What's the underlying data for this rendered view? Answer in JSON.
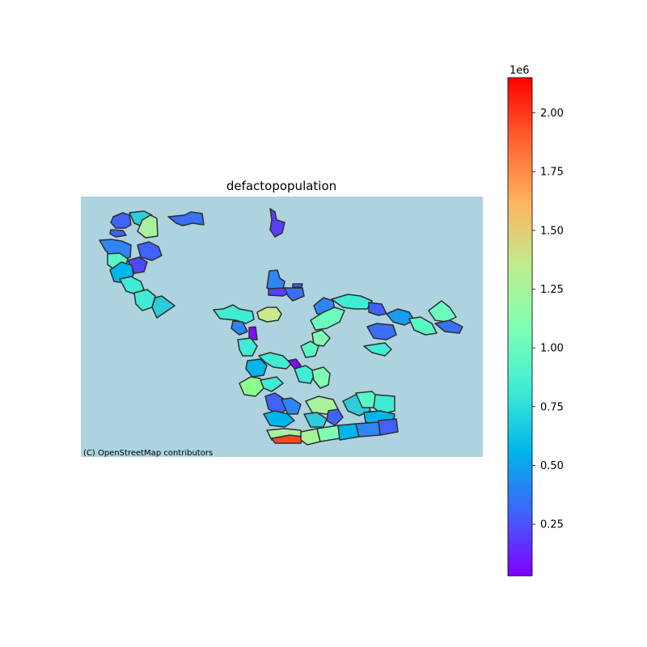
{
  "map": {
    "title": "defactopopulation",
    "attribution": "(C) OpenStreetMap contributors",
    "background_color": "#add3df",
    "outline_color": "#2f2f2f"
  },
  "colorbar": {
    "colormap": "rainbow",
    "stops": [
      "#8000ff",
      "#4062fa",
      "#00b5eb",
      "#40ecd4",
      "#80ffb4",
      "#c0eb8d",
      "#ffb360",
      "#ff6230",
      "#ff0000"
    ],
    "min": 30000,
    "max": 2150000,
    "exponent_label": "1e6",
    "ticks": [
      {
        "value": 0.25,
        "label": "0.25"
      },
      {
        "value": 0.5,
        "label": "0.50"
      },
      {
        "value": 0.75,
        "label": "0.75"
      },
      {
        "value": 1.0,
        "label": "1.00"
      },
      {
        "value": 1.25,
        "label": "1.25"
      },
      {
        "value": 1.5,
        "label": "1.50"
      },
      {
        "value": 1.75,
        "label": "1.75"
      },
      {
        "value": 2.0,
        "label": "2.00"
      }
    ]
  },
  "chart_data": {
    "type": "choropleth",
    "variable": "defactopopulation",
    "unit_multiplier": "1e6",
    "legend": "colorbar-right",
    "value_range": [
      0.03,
      2.15
    ]
  }
}
